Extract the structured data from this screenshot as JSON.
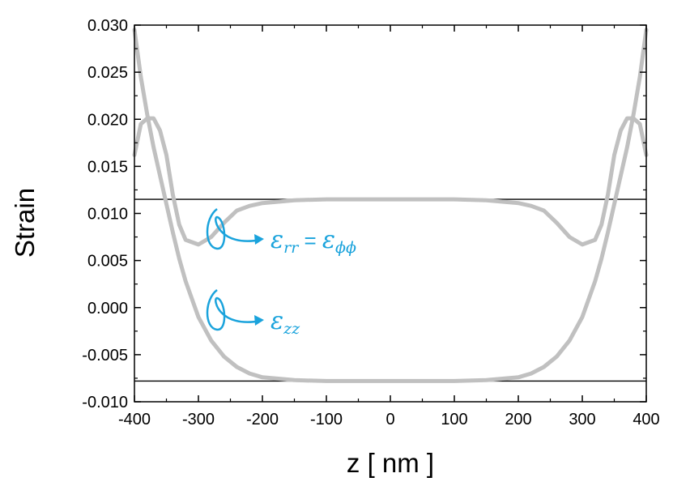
{
  "chart_data": {
    "type": "line",
    "xlabel": "z [ nm ]",
    "ylabel": "Strain",
    "xlim": [
      -400,
      400
    ],
    "ylim": [
      -0.01,
      0.03
    ],
    "x_ticks": [
      "-400",
      "-300",
      "-200",
      "-100",
      "0",
      "100",
      "200",
      "300",
      "400"
    ],
    "y_ticks": [
      "-0.010",
      "-0.005",
      "0.000",
      "0.005",
      "0.010",
      "0.015",
      "0.020",
      "0.025",
      "0.030"
    ],
    "grid": false,
    "reference_lines": [
      0.0115,
      -0.0078
    ],
    "series": [
      {
        "name": "ε_rr = ε_φφ",
        "color": "#c0c0c0",
        "x": [
          -400,
          -390,
          -380,
          -370,
          -360,
          -350,
          -340,
          -330,
          -320,
          -300,
          -280,
          -260,
          -240,
          -220,
          -200,
          -150,
          -100,
          -50,
          0,
          50,
          100,
          150,
          200,
          220,
          240,
          260,
          280,
          300,
          320,
          330,
          340,
          350,
          360,
          370,
          380,
          390,
          400
        ],
        "y": [
          0.0162,
          0.0195,
          0.0201,
          0.0201,
          0.0188,
          0.0162,
          0.012,
          0.0088,
          0.0072,
          0.0067,
          0.0075,
          0.009,
          0.0103,
          0.0108,
          0.0111,
          0.0114,
          0.0115,
          0.0115,
          0.0115,
          0.0115,
          0.0115,
          0.0114,
          0.0111,
          0.0108,
          0.0103,
          0.009,
          0.0075,
          0.0067,
          0.0072,
          0.0088,
          0.012,
          0.0162,
          0.0188,
          0.0201,
          0.0201,
          0.0195,
          0.0162
        ]
      },
      {
        "name": "ε_zz",
        "color": "#c0c0c0",
        "x": [
          -400,
          -390,
          -380,
          -370,
          -360,
          -350,
          -340,
          -330,
          -320,
          -300,
          -280,
          -260,
          -240,
          -220,
          -200,
          -150,
          -100,
          -50,
          0,
          50,
          100,
          150,
          200,
          220,
          240,
          260,
          280,
          300,
          320,
          330,
          340,
          350,
          360,
          370,
          380,
          390,
          400
        ],
        "y": [
          0.0295,
          0.0245,
          0.0205,
          0.017,
          0.014,
          0.011,
          0.008,
          0.0052,
          0.0028,
          -0.001,
          -0.0035,
          -0.0052,
          -0.0063,
          -0.007,
          -0.0074,
          -0.0077,
          -0.0078,
          -0.0078,
          -0.0078,
          -0.0078,
          -0.0078,
          -0.0077,
          -0.0074,
          -0.007,
          -0.0063,
          -0.0052,
          -0.0035,
          -0.001,
          0.0028,
          0.0052,
          0.008,
          0.011,
          0.014,
          0.017,
          0.0205,
          0.0245,
          0.0295
        ]
      }
    ],
    "annotations": [
      {
        "base": "ε",
        "sub": "rr",
        "equals": " = ",
        "base2": "ε",
        "sub2": "ϕϕ",
        "color": "#1aa3dc"
      },
      {
        "base": "ε",
        "sub": "zz",
        "color": "#1aa3dc"
      }
    ]
  }
}
